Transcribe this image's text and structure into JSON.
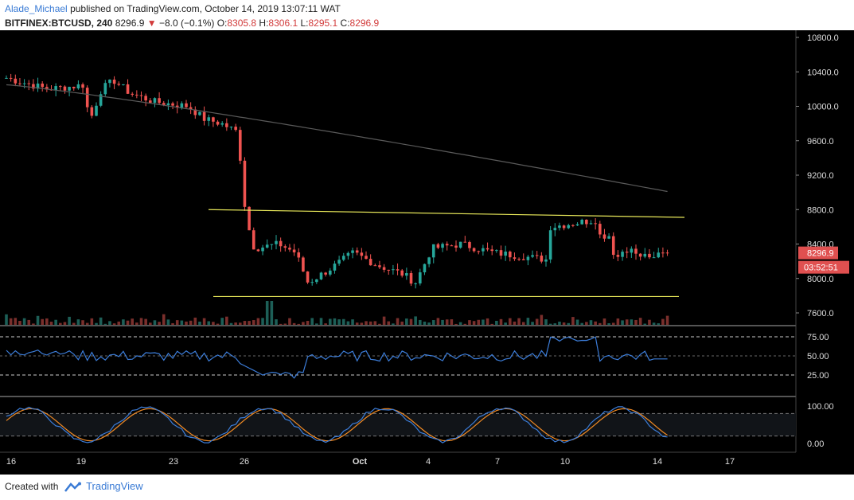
{
  "header": {
    "author": "Alade_Michael",
    "published_text": "published on TradingView.com, October 14, 2019 13:07:11 WAT",
    "symbol": "BITFINEX:BTCUSD, 240",
    "last": "8296.9",
    "change": "−8.0 (−0.1%)",
    "o_label": "O:",
    "o_value": "8305.8",
    "h_label": "H:",
    "h_value": "8306.1",
    "l_label": "L:",
    "l_value": "8295.1",
    "c_label": "C:",
    "c_value": "8296.9"
  },
  "footer": {
    "created_with": "Created with",
    "brand": "TradingView"
  },
  "colors": {
    "background": "#000000",
    "up": "#26a69a",
    "down": "#ef5350",
    "channel": "#e8e85a",
    "ma": "#5a5a5a",
    "rsi": "#3c7dd9",
    "stoch_k": "#3c7dd9",
    "stoch_d": "#f08a24",
    "price_tag": "#e05050"
  },
  "price_tag": {
    "price": "8296.9",
    "countdown": "03:52:51"
  },
  "chart_data": [
    {
      "type": "candlestick",
      "name": "BITFINEX:BTCUSD 240",
      "x_tick_labels": [
        "16",
        "19",
        "23",
        "26",
        "Oct",
        "4",
        "7",
        "10",
        "14",
        "17"
      ],
      "y_tick_labels": [
        "10800.0",
        "10400.0",
        "10000.0",
        "9600.0",
        "9200.0",
        "8800.0",
        "8400.0",
        "8000.0",
        "7600.0"
      ],
      "ylim": [
        7500,
        10900
      ],
      "overlays": [
        "descending channel upper line ~8800 to ~8700",
        "channel lower line ~7800",
        "moving average ~10250 to ~9000"
      ]
    },
    {
      "type": "line",
      "name": "RSI",
      "y_tick_labels": [
        "75.00",
        "50.00",
        "25.00"
      ],
      "ylim": [
        0,
        100
      ]
    },
    {
      "type": "line",
      "name": "Stochastic",
      "y_tick_labels": [
        "100.00",
        "0.00"
      ],
      "ylim": [
        -10,
        110
      ]
    }
  ]
}
